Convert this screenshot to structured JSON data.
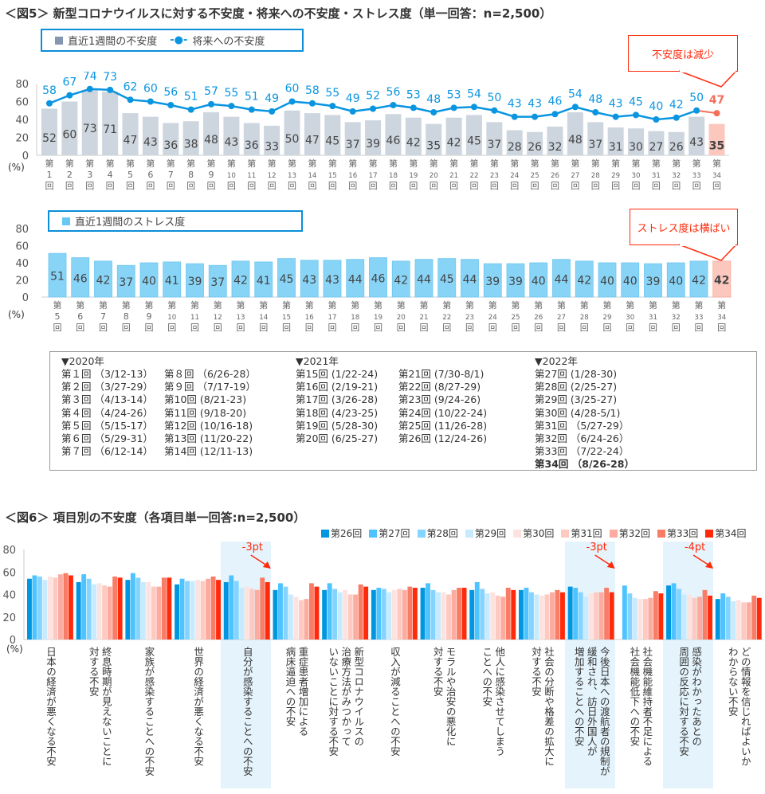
{
  "fig5": {
    "title": "＜図5＞ 新型コロナウイルスに対する不安度・将来への不安度・ストレス度（単一回答：n=2,500）",
    "legend": {
      "bar": "直近1週間の不安度",
      "line": "将来への不安度",
      "stress": "直近1週間のストレス度"
    },
    "callout_anxiety": "不安度は減少",
    "callout_stress": "ストレス度は横ばい",
    "unit": "(%)",
    "legend_line_symbol": "-●-"
  },
  "chart_data": [
    {
      "type": "bar+line",
      "ylim": [
        0,
        80
      ],
      "yticks": [
        0,
        20,
        40,
        60,
        80
      ],
      "categories": [
        "1",
        "2",
        "3",
        "4",
        "5",
        "6",
        "7",
        "8",
        "9",
        "10",
        "11",
        "12",
        "13",
        "14",
        "15",
        "16",
        "17",
        "18",
        "19",
        "20",
        "21",
        "22",
        "23",
        "24",
        "25",
        "26",
        "27",
        "28",
        "29",
        "30",
        "31",
        "32",
        "33",
        "34"
      ],
      "category_format": "第{n}回",
      "series": [
        {
          "name": "直近1週間の不安度",
          "type": "bar",
          "color": "#cdd5de",
          "highlight_color": "#fcc7bd",
          "values": [
            52,
            60,
            73,
            71,
            47,
            43,
            36,
            38,
            48,
            43,
            36,
            33,
            50,
            47,
            45,
            37,
            39,
            46,
            42,
            35,
            42,
            45,
            37,
            28,
            26,
            32,
            48,
            37,
            31,
            30,
            27,
            26,
            43,
            35
          ]
        },
        {
          "name": "将来への不安度",
          "type": "line",
          "color": "#0a95e0",
          "highlight_color": "#f36f5a",
          "values": [
            58,
            67,
            74,
            73,
            62,
            60,
            56,
            51,
            57,
            55,
            51,
            49,
            60,
            58,
            55,
            49,
            52,
            56,
            53,
            48,
            53,
            54,
            50,
            43,
            43,
            46,
            54,
            48,
            43,
            45,
            40,
            42,
            50,
            47
          ]
        }
      ]
    },
    {
      "type": "bar",
      "ylim": [
        0,
        80
      ],
      "yticks": [
        0,
        20,
        40,
        60,
        80
      ],
      "categories": [
        "5",
        "6",
        "7",
        "8",
        "9",
        "10",
        "11",
        "12",
        "13",
        "14",
        "15",
        "16",
        "17",
        "18",
        "19",
        "20",
        "21",
        "22",
        "23",
        "24",
        "25",
        "26",
        "27",
        "28",
        "29",
        "30",
        "31",
        "32",
        "33",
        "34"
      ],
      "category_format": "第{n}回",
      "series": [
        {
          "name": "直近1週間のストレス度",
          "color": "#88d4f7",
          "highlight_color": "#fcc7bd",
          "values": [
            51,
            46,
            42,
            37,
            40,
            41,
            39,
            37,
            42,
            41,
            45,
            43,
            43,
            44,
            46,
            42,
            44,
            45,
            44,
            39,
            39,
            40,
            44,
            42,
            40,
            40,
            39,
            40,
            42,
            42
          ]
        }
      ]
    },
    {
      "type": "bar",
      "title": "＜図6＞ 項目別の不安度（各項目単一回答:n=2,500）",
      "ylim": [
        0,
        80
      ],
      "yticks": [
        0,
        20,
        40,
        60,
        80
      ],
      "unit": "(%)",
      "categories": [
        "日本の経済が悪くなる不安",
        "終息時期が見えないことに\n対する不安",
        "家族が感染することへの不安",
        "世界の経済が悪くなる不安",
        "自分が感染することへの不安",
        "重症患者増加による\n病床逼迫への不安",
        "新型コロナウイルスの\n治療方法がみつかって\nいないことに対する不安",
        "収入が減ることへの不安",
        "モラルや治安の悪化に\n対する不安",
        "他人に感染させてしまう\nことへの不安",
        "社会の分断や格差の拡大に\n対する不安",
        "今後日本への渡航者の規制が\n緩和され、訪日外国人が\n増加することへの不安",
        "社会機能維持者不足による\n社会機能低下への不安",
        "感染がわかったあとの\n周囲の反応に対する不安",
        "どの情報を信じればよいか\nわからない不安"
      ],
      "highlighted_categories": [
        4,
        11,
        13
      ],
      "annotations": [
        {
          "category": 4,
          "text": "-3pt"
        },
        {
          "category": 11,
          "text": "-3pt"
        },
        {
          "category": 13,
          "text": "-4pt"
        }
      ],
      "series": [
        {
          "name": "第26回",
          "color": "#0096e0",
          "values": [
            54,
            51,
            53,
            49,
            51,
            44,
            44,
            44,
            46,
            44,
            44,
            47,
            null,
            48,
            36
          ]
        },
        {
          "name": "第27回",
          "color": "#4dc3ff",
          "values": [
            57,
            58,
            59,
            54,
            57,
            50,
            50,
            46,
            50,
            51,
            46,
            46,
            48,
            50,
            41
          ]
        },
        {
          "name": "第28回",
          "color": "#85d4ff",
          "values": [
            56,
            54,
            55,
            52,
            52,
            47,
            45,
            45,
            44,
            45,
            42,
            42,
            41,
            45,
            38
          ]
        },
        {
          "name": "第29回",
          "color": "#c6ebff",
          "values": [
            53,
            49,
            51,
            52,
            46,
            40,
            42,
            42,
            42,
            41,
            40,
            38,
            37,
            40,
            34
          ]
        },
        {
          "name": "第30回",
          "color": "#fde3e0",
          "values": [
            56,
            50,
            51,
            53,
            47,
            38,
            44,
            44,
            42,
            42,
            39,
            41,
            36,
            40,
            35
          ]
        },
        {
          "name": "第31回",
          "color": "#fdc9c0",
          "values": [
            55,
            48,
            47,
            52,
            45,
            35,
            40,
            45,
            40,
            39,
            40,
            42,
            36,
            37,
            33
          ]
        },
        {
          "name": "第32回",
          "color": "#fbac9f",
          "values": [
            58,
            47,
            47,
            54,
            44,
            36,
            40,
            44,
            44,
            38,
            42,
            42,
            37,
            38,
            33
          ]
        },
        {
          "name": "第33回",
          "color": "#f87c66",
          "values": [
            59,
            56,
            55,
            56,
            55,
            50,
            49,
            47,
            46,
            46,
            44,
            46,
            43,
            44,
            39
          ]
        },
        {
          "name": "第34回",
          "color": "#ff2a0a",
          "values": [
            57,
            55,
            55,
            53,
            51,
            47,
            47,
            46,
            46,
            44,
            42,
            42,
            41,
            39,
            37
          ]
        }
      ]
    }
  ],
  "schedule": {
    "years": [
      {
        "label": "▼2020年",
        "columns": [
          [
            "第１回 （3/12-13）",
            "第２回 （3/27-29）",
            "第３回 （4/13-14）",
            "第４回 （4/24-26）",
            "第５回 （5/15-17）",
            "第６回 （5/29-31）",
            "第７回 （6/12-14）"
          ],
          [
            "第８回 （6/26-28）",
            "第９回 （7/17-19）",
            "第10回 (8/21-23)",
            "第11回 (9/18-20)",
            "第12回 (10/16-18)",
            "第13回 (11/20-22)",
            "第14回 (12/11-13)"
          ]
        ]
      },
      {
        "label": "▼2021年",
        "columns": [
          [
            "第15回 (1/22-24)",
            "第16回 (2/19-21)",
            "第17回 (3/26-28)",
            "第18回 (4/23-25)",
            "第19回 (5/28-30)",
            "第20回 (6/25-27)"
          ],
          [
            "第21回 (7/30-8/1)",
            "第22回 (8/27-29)",
            "第23回 (9/24-26)",
            "第24回 (10/22-24)",
            "第25回 (11/26-28)",
            "第26回 (12/24-26)"
          ]
        ]
      },
      {
        "label": "▼2022年",
        "columns": [
          [
            "第27回 (1/28-30)",
            "第28回 (2/25-27)",
            "第29回 (3/25-27)",
            "第30回 (4/28-5/1)",
            "第31回 （5/27-29）",
            "第32回 （6/24-26）",
            "第33回 （7/22-24）"
          ]
        ],
        "bold_last": "第34回 （8/26-28）"
      }
    ]
  }
}
